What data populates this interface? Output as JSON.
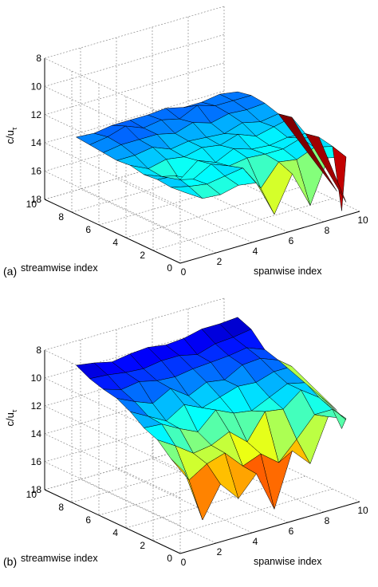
{
  "figure": {
    "background": "#ffffff",
    "grid": true,
    "colormap": "jet",
    "colors": {
      "axis": "#000000",
      "grid": "#8c8c8c",
      "edge": "#000000"
    }
  },
  "chart_data": [
    {
      "panel_label": "(a)",
      "type": "surface3d",
      "zlabel": "c/u",
      "zlabel_subscript": "τ",
      "xlabel": "spanwise index",
      "ylabel": "streamwise index",
      "xlim": [
        0,
        10
      ],
      "ylim": [
        0,
        10
      ],
      "zlim": [
        8,
        18
      ],
      "z_reversed": true,
      "x_ticks": [
        "0",
        "2",
        "4",
        "6",
        "8",
        "10"
      ],
      "y_ticks": [
        "0",
        "2",
        "4",
        "6",
        "8",
        "10"
      ],
      "z_ticks": [
        "8",
        "10",
        "12",
        "14",
        "16",
        "18"
      ],
      "color_range": [
        12,
        18
      ],
      "grid_x": [
        1,
        2,
        3,
        4,
        5,
        6,
        7,
        8,
        9,
        10
      ],
      "grid_y": [
        1,
        2,
        3,
        4,
        5,
        6,
        7,
        8,
        9
      ],
      "z": [
        [
          13.8,
          14.6,
          14.7,
          14.4,
          14.6,
          17.2,
          14.7,
          17.3,
          14.3,
          14.6
        ],
        [
          13.9,
          14.2,
          14.4,
          14.2,
          14.0,
          15.8,
          14.3,
          14.5,
          14.0,
          14.3
        ],
        [
          13.8,
          13.9,
          14.5,
          13.8,
          14.3,
          14.1,
          14.2,
          14.2,
          13.8,
          14.1
        ],
        [
          13.9,
          14.4,
          15.0,
          14.0,
          14.5,
          13.9,
          14.3,
          14.4,
          14.2,
          14.3
        ],
        [
          13.7,
          14.3,
          14.0,
          14.2,
          13.9,
          14.1,
          13.7,
          14.2,
          13.9,
          13.6
        ],
        [
          13.8,
          13.8,
          13.6,
          14.1,
          13.9,
          14.0,
          14.1,
          13.7,
          14.0,
          13.8
        ],
        [
          13.7,
          13.5,
          13.5,
          13.5,
          13.8,
          13.4,
          13.8,
          13.5,
          13.6,
          13.5
        ],
        [
          13.6,
          13.4,
          13.0,
          13.5,
          13.3,
          13.6,
          13.0,
          13.4,
          13.4,
          13.4
        ],
        [
          13.5,
          13.6,
          13.4,
          13.4,
          13.4,
          13.3,
          13.6,
          13.6,
          13.4,
          13.6
        ]
      ],
      "edge_spikes": [
        {
          "x": 9,
          "y": 0,
          "z": 17.6
        },
        {
          "x": 10,
          "y": 1,
          "z": 17.8
        },
        {
          "x": 11,
          "y": 3,
          "z": 18.3
        }
      ]
    },
    {
      "panel_label": "(b)",
      "type": "surface3d",
      "zlabel": "c/u",
      "zlabel_subscript": "τ",
      "xlabel": "spanwise index",
      "ylabel": "streamwise index",
      "xlim": [
        0,
        10
      ],
      "ylim": [
        0,
        10
      ],
      "zlim": [
        8,
        18
      ],
      "z_reversed": true,
      "x_ticks": [
        "0",
        "2",
        "4",
        "6",
        "8",
        "10"
      ],
      "y_ticks": [
        "0",
        "2",
        "4",
        "6",
        "8",
        "10"
      ],
      "z_ticks": [
        "8",
        "10",
        "12",
        "14",
        "16",
        "18"
      ],
      "color_range": [
        8.5,
        17
      ],
      "grid_x": [
        1,
        2,
        3,
        4,
        5,
        6,
        7,
        8,
        9,
        10
      ],
      "grid_y": [
        1,
        2,
        3,
        4,
        5,
        6,
        7,
        8,
        9
      ],
      "z": [
        [
          13.0,
          16.8,
          14.6,
          16.0,
          14.6,
          17.5,
          13.7,
          15.0,
          12.0,
          12.5
        ],
        [
          12.5,
          14.4,
          13.6,
          13.2,
          14.5,
          14.0,
          15.0,
          13.7,
          12.3,
          12.3
        ],
        [
          11.6,
          12.4,
          13.3,
          13.1,
          12.5,
          13.6,
          11.8,
          12.0,
          11.0,
          11.9
        ],
        [
          11.2,
          11.3,
          12.0,
          12.6,
          11.4,
          12.0,
          12.2,
          11.6,
          11.0,
          11.3
        ],
        [
          10.5,
          11.2,
          11.9,
          11.1,
          11.7,
          11.3,
          10.9,
          11.0,
          10.6,
          10.6
        ],
        [
          10.0,
          10.6,
          11.1,
          10.4,
          11.3,
          10.7,
          10.9,
          10.2,
          10.1,
          10.6
        ],
        [
          9.8,
          10.2,
          10.0,
          10.3,
          10.4,
          10.2,
          10.1,
          10.0,
          9.8,
          10.3
        ],
        [
          9.5,
          9.6,
          9.8,
          9.9,
          9.7,
          9.7,
          10.0,
          9.6,
          9.5,
          9.3
        ],
        [
          9.0,
          9.2,
          9.5,
          9.3,
          9.2,
          9.4,
          9.3,
          9.0,
          9.0,
          8.9
        ]
      ],
      "edge_spikes": [
        {
          "x": 9,
          "y": 0,
          "z": 12.4
        },
        {
          "x": 10,
          "y": 1,
          "z": 12.6
        },
        {
          "x": 11,
          "y": 3,
          "z": 13.2
        }
      ]
    }
  ]
}
